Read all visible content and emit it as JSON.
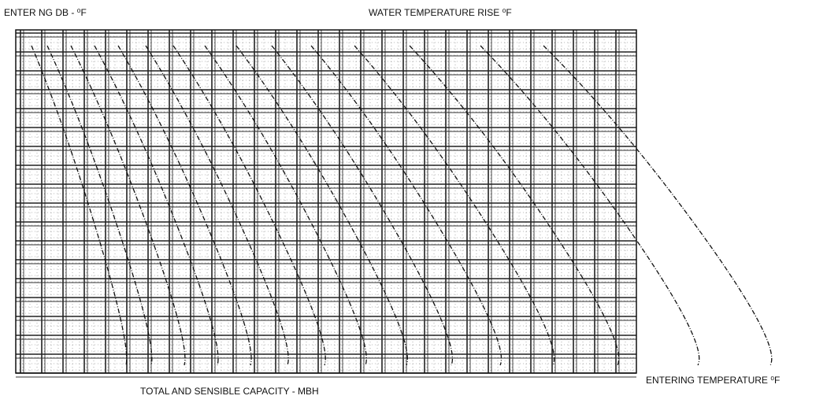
{
  "labels": {
    "top_left": "ENTER NG DB - ⁰F",
    "top_right": "WATER TEMPERATURE RISE ⁰F",
    "bottom": "TOTAL AND SENSIBLE CAPACITY - MBH",
    "right": "ENTERING TEMPERATURE ⁰F"
  }
}
